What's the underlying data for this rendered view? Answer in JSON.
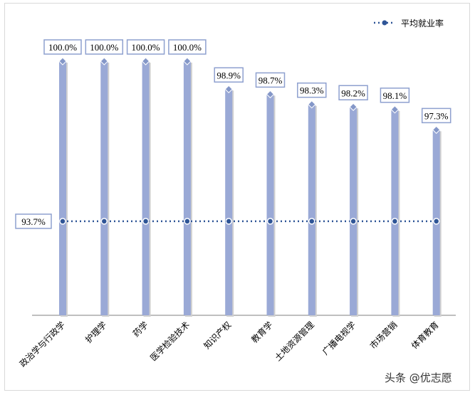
{
  "chart_data": {
    "type": "bar",
    "categories": [
      "政治学与行政学",
      "护理学",
      "药学",
      "医学检验技术",
      "知识产权",
      "教育学",
      "土地资源管理",
      "广播电视学",
      "市场营销",
      "体育教育"
    ],
    "values": [
      100.0,
      100.0,
      100.0,
      100.0,
      98.9,
      98.7,
      98.3,
      98.2,
      98.1,
      97.3
    ],
    "value_labels": [
      "100.0%",
      "100.0%",
      "100.0%",
      "100.0%",
      "98.9%",
      "98.7%",
      "98.3%",
      "98.2%",
      "98.1%",
      "97.3%"
    ],
    "average": {
      "name": "平均就业率",
      "value": 93.7,
      "label": "93.7%"
    },
    "legend": "top-right",
    "ylim": [
      90,
      100
    ],
    "title": "",
    "xlabel": "",
    "ylabel": "",
    "colors": {
      "bar": "#9aa9d6",
      "avg_line": "#2f5597"
    }
  },
  "watermark": "头条 @优志愿"
}
